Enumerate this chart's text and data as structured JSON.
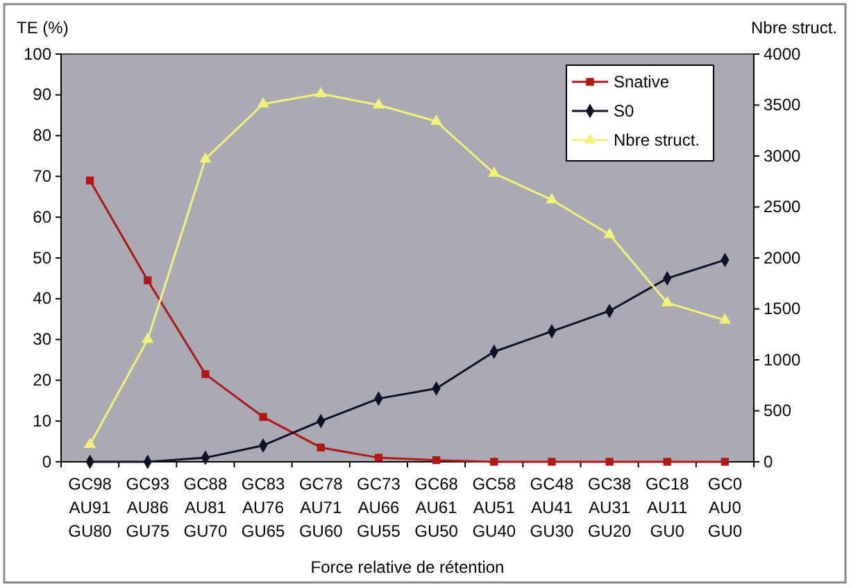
{
  "chart_data": {
    "type": "line",
    "categories": [
      "GC98\nAU91\nGU80",
      "GC93\nAU86\nGU75",
      "GC88\nAU81\nGU70",
      "GC83\nAU76\nGU65",
      "GC78\nAU71\nGU60",
      "GC73\nAU66\nGU55",
      "GC68\nAU61\nGU50",
      "GC58\nAU51\nGU40",
      "GC48\nAU41\nGU30",
      "GC38\nAU31\nGU20",
      "GC18\nAU11\nGU0",
      "GC0\nAU0\nGU0"
    ],
    "series": [
      {
        "name": "Snative",
        "color": "#b01818",
        "marker": "square",
        "values": [
          69,
          44.5,
          21.5,
          11,
          3.5,
          1,
          0.4,
          0,
          0,
          0,
          0,
          0
        ]
      },
      {
        "name": "S0",
        "color": "#101028",
        "marker": "diamond",
        "values": [
          0,
          0,
          1,
          4,
          10,
          15.5,
          18,
          27,
          32,
          37,
          45,
          49.5
        ]
      },
      {
        "name": "Nbre struct.",
        "color": "#f2f27a",
        "marker": "triangle",
        "axis": "y2",
        "values": [
          170,
          1200,
          2970,
          3510,
          3610,
          3500,
          3340,
          2830,
          2570,
          2230,
          1560,
          1390
        ]
      }
    ],
    "xlabel": "Force relative de rétention",
    "ylabel": "TE (%)",
    "y2label": "Nbre struct.",
    "ylim": [
      0,
      100
    ],
    "yticks": [
      0,
      10,
      20,
      30,
      40,
      50,
      60,
      70,
      80,
      90,
      100
    ],
    "y2lim": [
      0,
      4000
    ],
    "y2ticks": [
      0,
      500,
      1000,
      1500,
      2000,
      2500,
      3000,
      3500,
      4000
    ],
    "legend": "top right",
    "grid": false
  }
}
